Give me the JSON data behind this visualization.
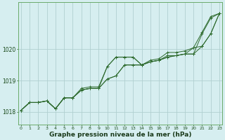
{
  "background_color": "#d6eef0",
  "grid_color": "#b0d0d0",
  "line_color": "#2d6a2d",
  "title": "Graphe pression niveau de la mer (hPa)",
  "xlabel_ticks": [
    0,
    1,
    2,
    3,
    4,
    5,
    6,
    7,
    8,
    9,
    10,
    11,
    12,
    13,
    14,
    15,
    16,
    17,
    18,
    19,
    20,
    21,
    22,
    23
  ],
  "yticks": [
    1018,
    1019,
    1020
  ],
  "ylim": [
    1017.6,
    1021.5
  ],
  "xlim": [
    -0.3,
    23.3
  ],
  "series": [
    [
      1018.05,
      1018.3,
      1018.3,
      1018.35,
      1018.1,
      1018.45,
      1018.45,
      1018.7,
      1018.75,
      1018.75,
      1019.45,
      1019.75,
      1019.75,
      1019.75,
      1019.5,
      1019.6,
      1019.65,
      1019.8,
      1019.8,
      1019.85,
      1019.85,
      1020.5,
      1021.0,
      1021.15
    ],
    [
      1018.05,
      1018.3,
      1018.3,
      1018.35,
      1018.1,
      1018.45,
      1018.45,
      1018.7,
      1018.75,
      1018.75,
      1019.05,
      1019.15,
      1019.5,
      1019.5,
      1019.5,
      1019.6,
      1019.65,
      1019.75,
      1019.8,
      1019.85,
      1019.85,
      1020.1,
      1020.5,
      1021.15
    ],
    [
      1018.05,
      1018.3,
      1018.3,
      1018.35,
      1018.1,
      1018.45,
      1018.45,
      1018.7,
      1018.75,
      1018.75,
      1019.05,
      1019.15,
      1019.5,
      1019.5,
      1019.5,
      1019.6,
      1019.65,
      1019.75,
      1019.8,
      1019.85,
      1020.05,
      1020.1,
      1020.5,
      1021.15
    ],
    [
      1018.05,
      1018.3,
      1018.3,
      1018.35,
      1018.1,
      1018.45,
      1018.45,
      1018.75,
      1018.8,
      1018.8,
      1019.45,
      1019.75,
      1019.75,
      1019.75,
      1019.5,
      1019.65,
      1019.7,
      1019.9,
      1019.9,
      1019.95,
      1020.05,
      1020.55,
      1021.05,
      1021.15
    ]
  ],
  "title_fontsize": 6.5,
  "xlabel_fontsize": 4.5,
  "ylabel_fontsize": 5.5
}
